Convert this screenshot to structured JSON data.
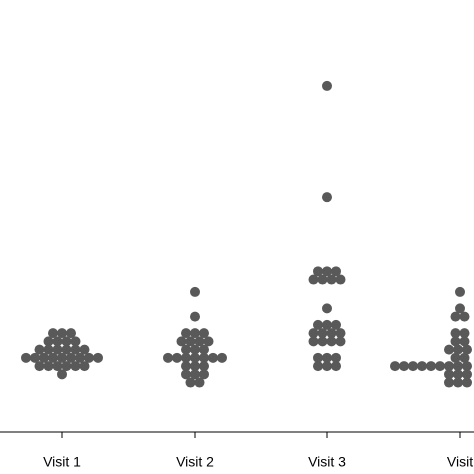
{
  "chart_data": {
    "type": "beeswarm",
    "categories": [
      "Visit 1",
      "Visit 2",
      "Visit 3",
      "Visit"
    ],
    "values": [
      [
        14,
        16,
        16,
        16,
        16,
        16,
        16,
        18,
        18,
        18,
        18,
        18,
        18,
        18,
        18,
        18,
        20,
        20,
        20,
        20,
        20,
        20,
        22,
        22,
        22,
        22,
        24,
        24,
        24
      ],
      [
        12,
        12,
        14,
        14,
        14,
        16,
        16,
        16,
        18,
        18,
        18,
        18,
        18,
        18,
        18,
        20,
        20,
        20,
        22,
        22,
        22,
        22,
        24,
        24,
        24,
        28,
        34
      ],
      [
        16,
        16,
        16,
        18,
        18,
        18,
        22,
        22,
        22,
        22,
        24,
        24,
        24,
        24,
        26,
        26,
        26,
        30,
        37,
        37,
        37,
        37,
        39,
        39,
        39,
        57,
        84
      ],
      [
        12,
        12,
        12,
        14,
        14,
        14,
        16,
        16,
        16,
        16,
        16,
        16,
        16,
        16,
        16,
        18,
        18,
        20,
        20,
        20,
        22,
        22,
        24,
        24,
        28,
        28,
        30,
        34
      ]
    ],
    "color": "#595959",
    "ylim": [
      0,
      100
    ]
  }
}
